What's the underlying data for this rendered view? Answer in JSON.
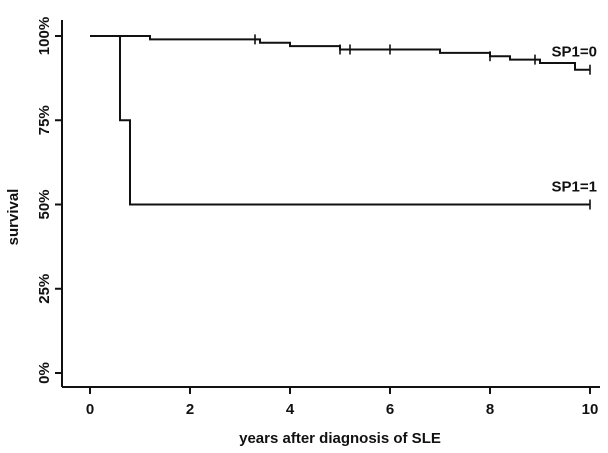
{
  "chart_data": {
    "type": "line",
    "title": "",
    "xlabel": "years after diagnosis of SLE",
    "ylabel": "survival",
    "xlim": [
      0,
      10
    ],
    "ylim": [
      0,
      1
    ],
    "xticks": [
      0,
      2,
      4,
      6,
      8,
      10
    ],
    "xtick_labels": [
      "0",
      "2",
      "4",
      "6",
      "8",
      "10"
    ],
    "yticks": [
      0,
      0.25,
      0.5,
      0.75,
      1.0
    ],
    "ytick_labels": [
      "0%",
      "25%",
      "50%",
      "75%",
      "100%"
    ],
    "grid": false,
    "series": [
      {
        "name": "SP1=0",
        "step_x": [
          0,
          1.2,
          3.3,
          3.4,
          4.0,
          5.0,
          7.0,
          8.0,
          8.4,
          9.0,
          9.7,
          10.0
        ],
        "step_y": [
          1.0,
          0.99,
          0.99,
          0.98,
          0.97,
          0.96,
          0.95,
          0.94,
          0.93,
          0.92,
          0.9,
          0.9
        ],
        "censored_x": [
          3.3,
          5.0,
          5.2,
          6.0,
          8.0,
          8.9,
          10.0
        ]
      },
      {
        "name": "SP1=1",
        "step_x": [
          0,
          0.6,
          0.8,
          10.0
        ],
        "step_y": [
          1.0,
          0.75,
          0.5,
          0.5
        ],
        "censored_x": [
          10.0
        ]
      }
    ]
  }
}
